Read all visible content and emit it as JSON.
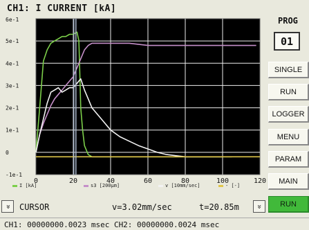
{
  "chart": {
    "title": "CH1: I CURRENT [kA]"
  },
  "chart_data": {
    "type": "line",
    "title": "CH1: I CURRENT [kA]",
    "xlim": [
      0,
      120
    ],
    "ylim": [
      -0.1,
      0.6
    ],
    "xticks": [
      "0",
      "20",
      "40",
      "60",
      "80",
      "100",
      "120"
    ],
    "yticks": [
      "6e-1",
      "5e-1",
      "4e-1",
      "3e-1",
      "2e-1",
      "1e-1",
      "0",
      "-1e-1"
    ],
    "yticks_values": [
      0.6,
      0.5,
      0.4,
      0.3,
      0.2,
      0.1,
      0,
      -0.1
    ],
    "grid": true,
    "cursor_x": 20.85,
    "series": [
      {
        "name": "I [kA]",
        "color": "#7ccf4a",
        "x": [
          0,
          2,
          4,
          6,
          8,
          10,
          12,
          14,
          16,
          18,
          20,
          22,
          23,
          23.5,
          24,
          25,
          26,
          28,
          30,
          40,
          60,
          80,
          100,
          105
        ],
        "y": [
          0.0,
          0.2,
          0.41,
          0.46,
          0.49,
          0.5,
          0.51,
          0.52,
          0.52,
          0.53,
          0.53,
          0.54,
          0.5,
          0.35,
          0.2,
          0.1,
          0.03,
          -0.01,
          -0.02,
          -0.02,
          -0.02,
          -0.02,
          -0.02,
          -0.02
        ]
      },
      {
        "name": "s3 [200µm]",
        "color": "#c58fc9",
        "x": [
          0,
          2,
          4,
          6,
          8,
          10,
          12,
          14,
          16,
          18,
          20,
          22,
          24,
          26,
          28,
          30,
          35,
          40,
          50,
          60,
          80,
          100,
          110,
          118
        ],
        "y": [
          0.0,
          0.08,
          0.13,
          0.17,
          0.21,
          0.24,
          0.26,
          0.28,
          0.3,
          0.32,
          0.34,
          0.38,
          0.42,
          0.46,
          0.48,
          0.49,
          0.49,
          0.49,
          0.49,
          0.48,
          0.48,
          0.48,
          0.48,
          0.48
        ]
      },
      {
        "name": "v [10mm/sec]",
        "color": "#f2f2f2",
        "x": [
          0,
          2,
          4,
          6,
          8,
          10,
          12,
          14,
          16,
          18,
          20,
          22,
          24,
          26,
          28,
          30,
          35,
          40,
          45,
          50,
          55,
          60,
          65,
          70,
          80,
          90,
          100
        ],
        "y": [
          0.0,
          0.08,
          0.15,
          0.22,
          0.27,
          0.28,
          0.29,
          0.27,
          0.28,
          0.29,
          0.29,
          0.31,
          0.33,
          0.28,
          0.24,
          0.2,
          0.15,
          0.1,
          0.07,
          0.05,
          0.03,
          0.015,
          0.0,
          -0.01,
          -0.02,
          -0.02,
          -0.02
        ]
      },
      {
        "name": "- [-]",
        "color": "#e0c64a",
        "x": [
          0,
          120
        ],
        "y": [
          -0.02,
          -0.02
        ]
      }
    ]
  },
  "cursor_bar": {
    "up_icon": "«",
    "label": "CURSOR",
    "v_readout": "v=3.02mm/sec",
    "t_readout": "t=20.85m",
    "down_icon": "»"
  },
  "status_line": "CH1: 00000000.0023 msec  CH2: 00000000.0024 msec",
  "sidebar": {
    "prog_label": "PROG",
    "prog_value": "01",
    "buttons": [
      {
        "label": "SINGLE",
        "active": false
      },
      {
        "label": "RUN",
        "active": false
      },
      {
        "label": "LOGGER",
        "active": false
      },
      {
        "label": "MENU",
        "active": false
      },
      {
        "label": "PARAM",
        "active": false
      },
      {
        "label": "MAIN",
        "active": false
      },
      {
        "label": "RUN",
        "active": true
      }
    ]
  },
  "colors": {
    "plot_bg": "#000000",
    "active_button": "#41b93a"
  }
}
